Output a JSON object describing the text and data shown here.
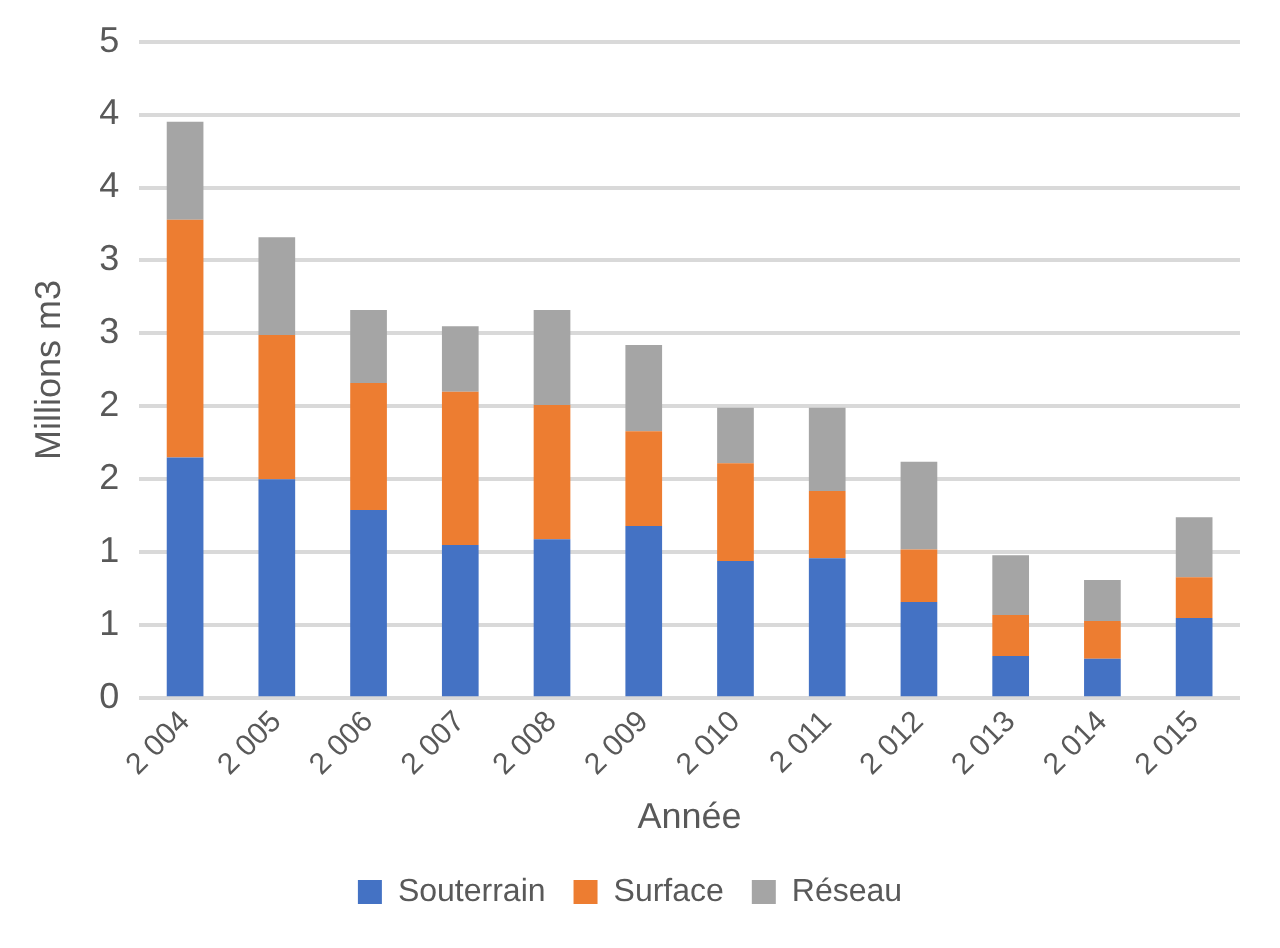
{
  "chart_data": {
    "type": "bar",
    "stacked": true,
    "xlabel": "Année",
    "ylabel": "Millions m3",
    "categories": [
      "2 004",
      "2 005",
      "2 006",
      "2 007",
      "2 008",
      "2 009",
      "2 010",
      "2 011",
      "2 012",
      "2 013",
      "2 014",
      "2 015"
    ],
    "series": [
      {
        "name": "Souterrain",
        "color": "#4472c4",
        "values": [
          1.65,
          1.5,
          1.29,
          1.05,
          1.09,
          1.18,
          0.94,
          0.96,
          0.66,
          0.29,
          0.27,
          0.55
        ]
      },
      {
        "name": "Surface",
        "color": "#ed7d31",
        "values": [
          1.63,
          0.99,
          0.87,
          1.05,
          0.92,
          0.65,
          0.67,
          0.46,
          0.36,
          0.28,
          0.26,
          0.28
        ]
      },
      {
        "name": "Réseau",
        "color": "#a5a5a5",
        "values": [
          0.67,
          0.67,
          0.5,
          0.45,
          0.65,
          0.59,
          0.38,
          0.57,
          0.6,
          0.41,
          0.28,
          0.41
        ]
      }
    ],
    "ylim": [
      0,
      4.5
    ],
    "yticks": [
      0,
      {
        "value": 0.5,
        "label": "1"
      },
      1,
      {
        "value": 1.5,
        "label": "2"
      },
      2,
      {
        "value": 2.5,
        "label": "3"
      },
      3,
      {
        "value": 3.5,
        "label": "4"
      },
      4,
      {
        "value": 4.5,
        "label": "5"
      }
    ],
    "grid": "y",
    "legend": "bottom"
  }
}
